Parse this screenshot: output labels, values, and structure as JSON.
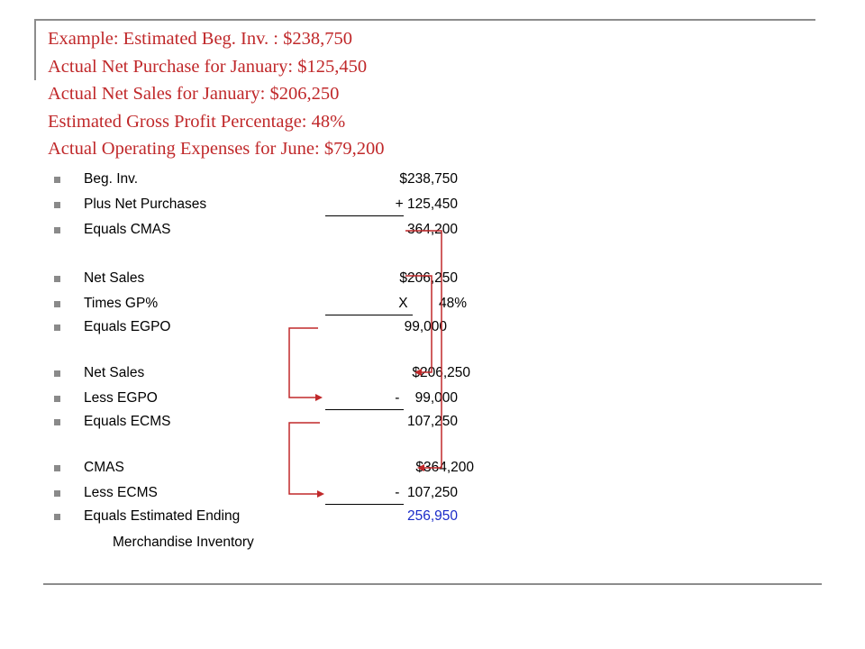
{
  "header_lines": [
    "Example: Estimated Beg. Inv. : $238,750",
    "Actual Net Purchase for January: $125,450",
    "Actual Net Sales for January: $206,250",
    "Estimated Gross Profit Percentage: 48%",
    "Actual Operating Expenses for June: $79,200"
  ],
  "rows": [
    {
      "label": "Beg. Inv.",
      "value": "$238,750"
    },
    {
      "label": "Plus Net Purchases",
      "value": "+ 125,450"
    },
    {
      "label": "Equals CMAS",
      "value": "364,200"
    },
    {
      "label": "Net Sales",
      "value": "$206,250"
    },
    {
      "label": "Times GP%",
      "value": "X        48%"
    },
    {
      "label": "Equals EGPO",
      "value": "99,000"
    },
    {
      "label": "Net Sales",
      "value": "$206,250"
    },
    {
      "label": "Less EGPO",
      "value": "-    99,000"
    },
    {
      "label": "Equals ECMS",
      "value": "107,250"
    },
    {
      "label": "CMAS",
      "value": "$364,200"
    },
    {
      "label": "Less ECMS",
      "value": "-  107,250"
    },
    {
      "label": "Equals Estimated Ending",
      "value": "256,950"
    }
  ],
  "continuation": "Merchandise Inventory",
  "colors": {
    "title": "#c0282a",
    "arrow": "#c0282a",
    "highlight_value": "#1a2bc8"
  }
}
